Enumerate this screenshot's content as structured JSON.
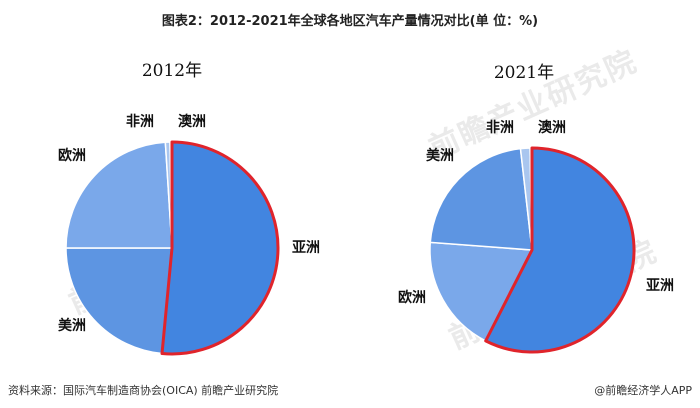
{
  "figure_title": "图表2：2012-2021年全球各地区汽车产量情况对比(单 位：%)",
  "watermark_text": "前瞻产业研究院",
  "footer": {
    "source": "资料来源：国际汽车制造商协会(OICA) 前瞻产业研究院",
    "logo": "@前瞻经济学人APP"
  },
  "colors": {
    "asia": "#4285e0",
    "americas": "#5d95e2",
    "europe": "#7aa8ea",
    "africa": "#a9c6ef",
    "oceania": "#c9d9f2",
    "highlight": "#e0242b"
  },
  "chart_data": [
    {
      "type": "pie",
      "title": "2012年",
      "highlight": "亚洲",
      "slices": [
        {
          "label": "亚洲",
          "value": 51.5
        },
        {
          "label": "美洲",
          "value": 23.5
        },
        {
          "label": "欧洲",
          "value": 24.0
        },
        {
          "label": "非洲",
          "value": 0.7
        },
        {
          "label": "澳洲",
          "value": 0.3
        }
      ]
    },
    {
      "type": "pie",
      "title": "2021年",
      "highlight": "亚洲",
      "slices": [
        {
          "label": "亚洲",
          "value": 57.5
        },
        {
          "label": "欧洲",
          "value": 18.7
        },
        {
          "label": "美洲",
          "value": 22.0
        },
        {
          "label": "非洲",
          "value": 1.5
        },
        {
          "label": "澳洲",
          "value": 0.3
        }
      ]
    }
  ]
}
